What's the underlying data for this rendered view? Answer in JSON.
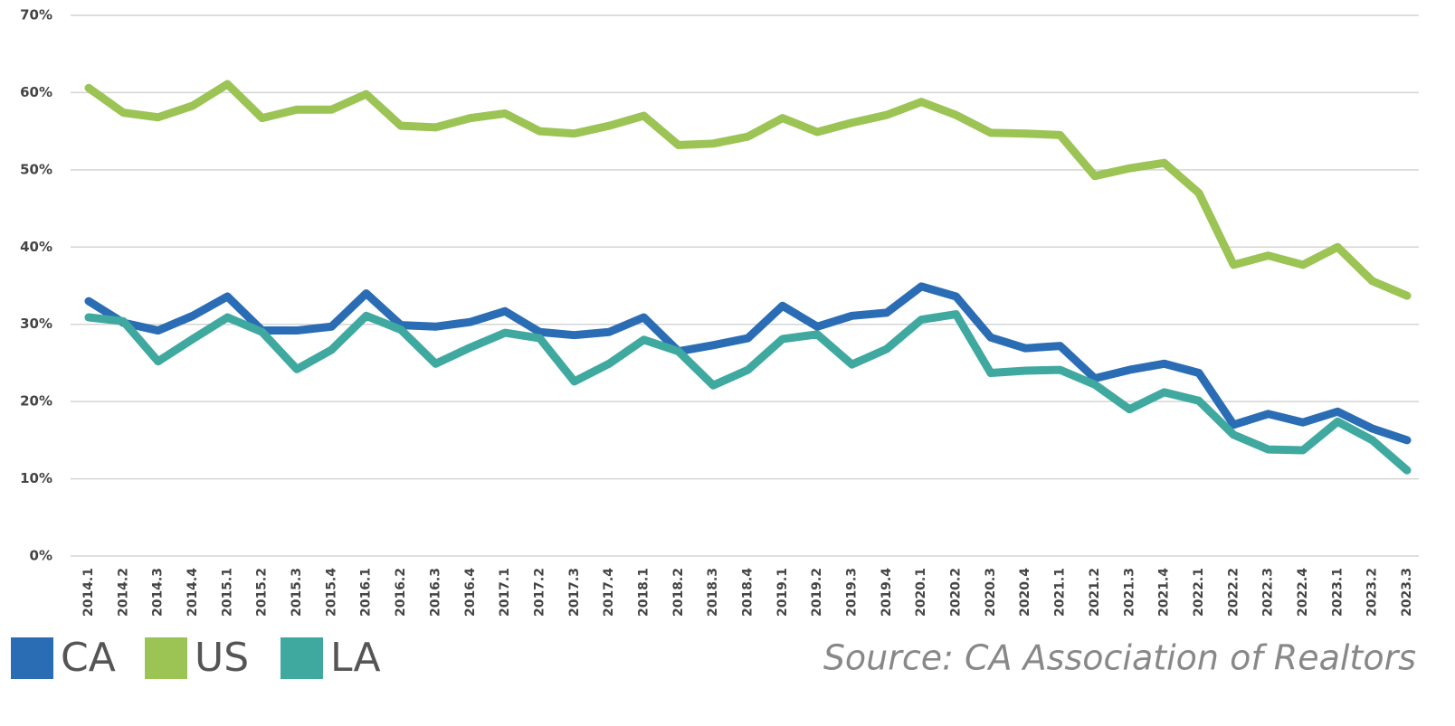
{
  "chart_data": {
    "type": "line",
    "categories": [
      "2014.1",
      "2014.2",
      "2014.3",
      "2014.4",
      "2015.1",
      "2015.2",
      "2015.3",
      "2015.4",
      "2016.1",
      "2016.2",
      "2016.3",
      "2016.4",
      "2017.1",
      "2017.2",
      "2017.3",
      "2017.4",
      "2018.1",
      "2018.2",
      "2018.3",
      "2018.4",
      "2019.1",
      "2019.2",
      "2019.3",
      "2019.4",
      "2020.1",
      "2020.2",
      "2020.3",
      "2020.4",
      "2021.1",
      "2021.2",
      "2021.3",
      "2021.4",
      "2022.1",
      "2022.2",
      "2022.3",
      "2022.4",
      "2023.1",
      "2023.2",
      "2023.3"
    ],
    "series": [
      {
        "name": "CA",
        "color": "#2a6db5",
        "values": [
          33.0,
          30.2,
          29.2,
          31.1,
          33.6,
          29.2,
          29.2,
          29.7,
          34.0,
          29.9,
          29.7,
          30.3,
          31.7,
          29.0,
          28.6,
          29.0,
          30.9,
          26.5,
          27.3,
          28.2,
          32.4,
          29.7,
          31.1,
          31.5,
          34.9,
          33.6,
          28.3,
          26.9,
          27.2,
          23.0,
          24.1,
          24.9,
          23.7,
          17.0,
          18.4,
          17.3,
          18.7,
          16.5,
          15.0
        ]
      },
      {
        "name": "US",
        "color": "#9bc454",
        "values": [
          60.6,
          57.4,
          56.8,
          58.3,
          61.1,
          56.7,
          57.8,
          57.8,
          59.8,
          55.7,
          55.5,
          56.7,
          57.3,
          55.0,
          54.7,
          55.7,
          57.0,
          53.2,
          53.4,
          54.3,
          56.7,
          54.9,
          56.1,
          57.1,
          58.8,
          57.1,
          54.8,
          54.7,
          54.5,
          49.2,
          50.2,
          50.9,
          47.0,
          37.7,
          38.9,
          37.7,
          40.0,
          35.6,
          33.7
        ]
      },
      {
        "name": "LA",
        "color": "#3fa9a0",
        "values": [
          30.9,
          30.4,
          25.2,
          28.1,
          30.9,
          29.0,
          24.2,
          26.7,
          31.1,
          29.3,
          24.9,
          27.0,
          28.9,
          28.2,
          22.6,
          24.9,
          28.0,
          26.5,
          22.1,
          24.1,
          28.1,
          28.7,
          24.8,
          26.8,
          30.6,
          31.3,
          23.7,
          24.0,
          24.1,
          22.2,
          19.0,
          21.2,
          20.1,
          15.7,
          13.8,
          13.7,
          17.4,
          15.0,
          11.1
        ]
      }
    ],
    "ylim": [
      0,
      70
    ],
    "yticks": [
      {
        "value": 0,
        "label": "0%"
      },
      {
        "value": 10,
        "label": "10%"
      },
      {
        "value": 20,
        "label": "20%"
      },
      {
        "value": 30,
        "label": "30%"
      },
      {
        "value": 40,
        "label": "40%"
      },
      {
        "value": 50,
        "label": "50%"
      },
      {
        "value": 60,
        "label": "60%"
      },
      {
        "value": 70,
        "label": "70%"
      }
    ],
    "grid": true,
    "legend": "bottom-left",
    "annotation": "Source: CA Association of Realtors"
  }
}
